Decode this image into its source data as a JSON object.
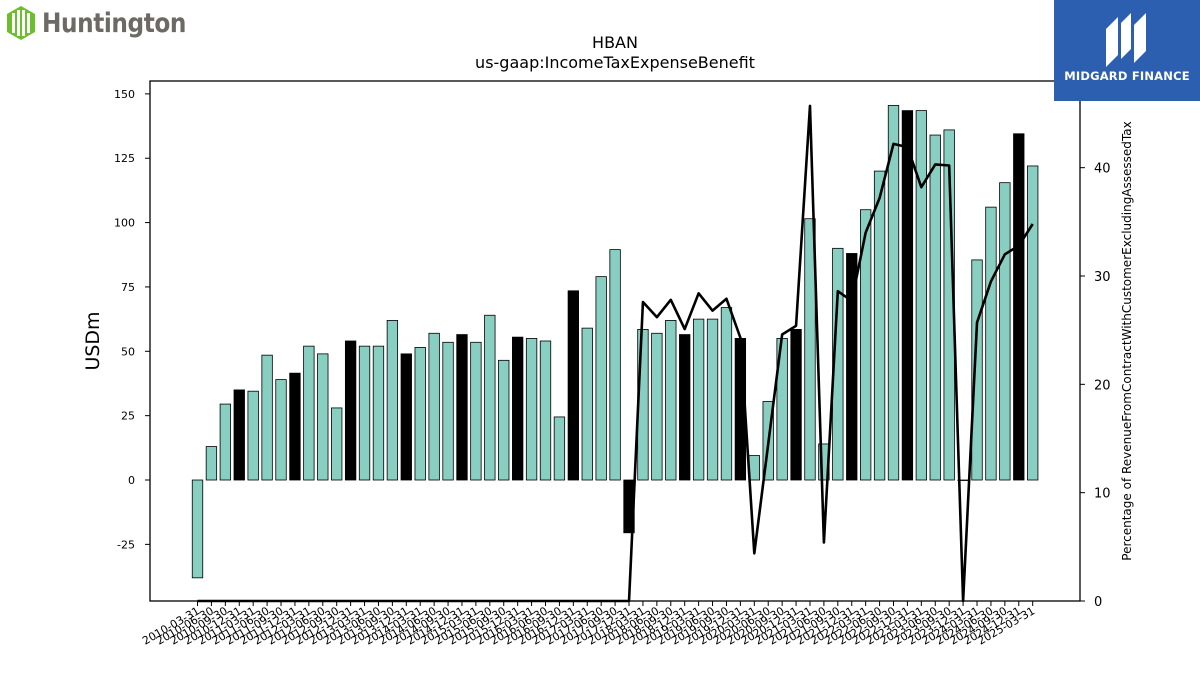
{
  "logos": {
    "left_text": "Huntington",
    "right_text": "MIDGARD FINANCE"
  },
  "chart_data": {
    "type": "bar",
    "title": "HBAN",
    "subtitle": "us-gaap:IncomeTaxExpenseBenefit",
    "ylabel": "USDm",
    "y2label": "Percentage of RevenueFromContractWithCustomerExcludingAssessedTax",
    "ylim": [
      -47,
      155
    ],
    "y2lim": [
      0,
      48
    ],
    "yticks": [
      -25,
      0,
      25,
      50,
      75,
      100,
      125,
      150
    ],
    "y2ticks": [
      0,
      10,
      20,
      30,
      40
    ],
    "grid": false,
    "legend": "none",
    "colors": {
      "quarter": "#88cfc1",
      "annual": "#000000",
      "line": "#000000"
    },
    "categories": [
      "2010-03-31",
      "2010-06-30",
      "2010-09-30",
      "2010-12-31",
      "2011-03-31",
      "2011-06-30",
      "2011-09-30",
      "2011-12-31",
      "2012-03-31",
      "2012-06-30",
      "2012-09-30",
      "2012-12-31",
      "2013-03-31",
      "2013-06-30",
      "2013-09-30",
      "2013-12-31",
      "2014-03-31",
      "2014-06-30",
      "2014-09-30",
      "2014-12-31",
      "2015-03-31",
      "2015-06-30",
      "2015-09-30",
      "2015-12-31",
      "2016-03-31",
      "2016-06-30",
      "2016-09-30",
      "2016-12-31",
      "2017-03-31",
      "2017-06-30",
      "2017-09-30",
      "2017-12-31",
      "2018-03-31",
      "2018-06-30",
      "2018-09-30",
      "2018-12-31",
      "2019-03-31",
      "2019-06-30",
      "2019-09-30",
      "2019-12-31",
      "2020-03-31",
      "2020-06-30",
      "2020-09-30",
      "2020-12-31",
      "2021-03-31",
      "2021-06-30",
      "2021-09-30",
      "2021-12-31",
      "2022-03-31",
      "2022-06-30",
      "2022-09-30",
      "2022-12-31",
      "2023-03-31",
      "2023-06-30",
      "2023-09-30",
      "2023-12-31",
      "2024-03-31",
      "2024-06-30",
      "2024-09-30",
      "2024-12-31",
      "2025-03-31"
    ],
    "tick_labels": [
      "2010-03-31",
      "2010-06-30",
      "2010-09-30",
      "2010-12-31",
      "2011-03-31",
      "2011-06-30",
      "2011-09-30",
      "2011-12-31",
      "2012-03-31",
      "2012-06-30",
      "2012-09-30",
      "2012-12-31",
      "2013-03-31",
      "2013-06-30",
      "2013-09-30",
      "2013-12-31",
      "2014-03-31",
      "2014-06-30",
      "2014-09-30",
      "2014-12-31",
      "2015-03-31",
      "2015-06-30",
      "2015-09-30",
      "2015-12-31",
      "2016-03-31",
      "2016-06-30",
      "2016-09-30",
      "2016-12-31",
      "2017-03-31",
      "2017-06-30",
      "2017-09-30",
      "2017-12-31",
      "2018-03-31",
      "2018-06-30",
      "2018-09-30",
      "2018-12-31",
      "2019-03-31",
      "2019-06-30",
      "2019-09-30",
      "2019-12-31",
      "2020-03-31",
      "2020-06-30",
      "2020-09-30",
      "2020-12-31",
      "2021-03-31",
      "2021-06-30",
      "2021-09-30",
      "2021-12-31",
      "2022-03-31",
      "2022-06-30",
      "2022-09-30",
      "2022-12-31",
      "2023-03-31",
      "2023-06-30",
      "2023-09-30",
      "2023-12-31",
      "2024-03-31",
      "2024-06-30",
      "2024-09-30",
      "2024-12-31",
      "2025-03-31"
    ],
    "bar_types": [
      "q",
      "q",
      "q",
      "a",
      "q",
      "q",
      "q",
      "a",
      "q",
      "q",
      "q",
      "a",
      "q",
      "q",
      "q",
      "a",
      "q",
      "q",
      "q",
      "a",
      "q",
      "q",
      "q",
      "a",
      "q",
      "q",
      "q",
      "a",
      "q",
      "q",
      "q",
      "a",
      "q",
      "q",
      "q",
      "a",
      "q",
      "q",
      "q",
      "a",
      "q",
      "q",
      "q",
      "a",
      "q",
      "q",
      "q",
      "a",
      "q",
      "q",
      "q",
      "a",
      "q",
      "q",
      "q",
      "a",
      "q",
      "q",
      "q",
      "a",
      "q"
    ],
    "series": [
      {
        "name": "IncomeTaxExpenseBenefit",
        "axis": "left",
        "values": [
          -38,
          13,
          29.5,
          35,
          34.5,
          48.5,
          39,
          41.5,
          52,
          49,
          28,
          54,
          52,
          52,
          62,
          49,
          51.5,
          57,
          53.5,
          56.5,
          53.5,
          64,
          46.5,
          55.5,
          55,
          54,
          24.5,
          73.5,
          59,
          79,
          89.5,
          -20.5,
          58.5,
          57,
          62,
          56.5,
          62.5,
          62.5,
          67,
          55,
          9.5,
          30.5,
          55,
          58.5,
          101.5,
          14,
          90,
          88,
          105,
          120,
          145.5,
          143.5,
          143.5,
          134,
          136,
          0,
          85.5,
          106,
          115.5,
          134.5,
          122
        ]
      },
      {
        "axis": "right",
        "values": [
          0,
          0,
          0,
          0,
          0,
          0,
          0,
          0,
          0,
          0,
          0,
          0,
          0,
          0,
          0,
          0,
          0,
          0,
          0,
          0,
          0,
          0,
          0,
          0,
          0,
          0,
          0,
          0,
          0,
          0,
          0,
          0,
          27.6,
          26.2,
          27.8,
          25.1,
          28.4,
          26.8,
          27.9,
          24.3,
          4.4,
          14.5,
          24.6,
          25.4,
          45.7,
          5.4,
          28.6,
          27.7,
          34,
          37.2,
          42.2,
          41.9,
          38.2,
          40.3,
          40.2,
          0,
          25.7,
          29.5,
          32,
          32.8,
          34.8
        ]
      }
    ]
  }
}
